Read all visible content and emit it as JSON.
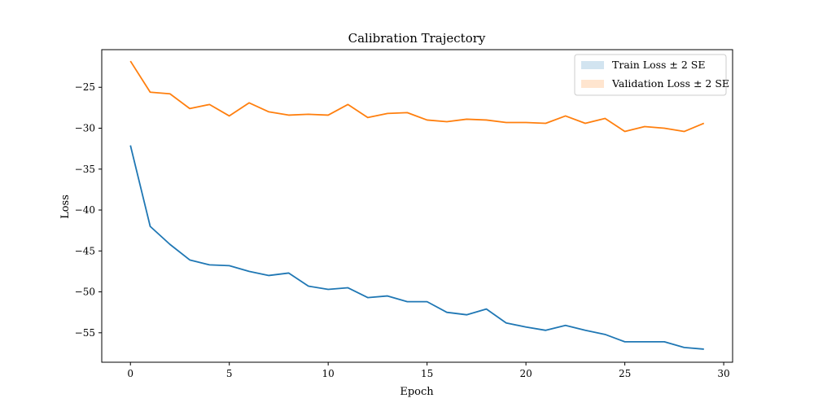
{
  "chart_data": {
    "type": "line",
    "title": "Calibration Trajectory",
    "xlabel": "Epoch",
    "ylabel": "Loss",
    "xlim": [
      -1.45,
      30.45
    ],
    "ylim": [
      -58.6,
      -20.4
    ],
    "xticks": [
      0,
      5,
      10,
      15,
      20,
      25,
      30
    ],
    "yticks": [
      -55,
      -50,
      -45,
      -40,
      -35,
      -30,
      -25
    ],
    "grid": false,
    "legend_position": "top-right",
    "x": [
      0,
      1,
      2,
      3,
      4,
      5,
      6,
      7,
      8,
      9,
      10,
      11,
      12,
      13,
      14,
      15,
      16,
      17,
      18,
      19,
      20,
      21,
      22,
      23,
      24,
      25,
      26,
      27,
      28,
      29
    ],
    "series": [
      {
        "name": "Train Loss ± 2 SE",
        "color": "#1f77b4",
        "values": [
          -32.1,
          -42.0,
          -44.2,
          -46.1,
          -46.7,
          -46.8,
          -47.5,
          -48.0,
          -47.7,
          -49.3,
          -49.7,
          -49.5,
          -50.7,
          -50.5,
          -51.2,
          -51.2,
          -52.5,
          -52.8,
          -52.1,
          -53.8,
          -54.3,
          -54.7,
          -54.1,
          -54.7,
          -55.2,
          -56.1,
          -56.1,
          -56.1,
          -56.8,
          -57.0
        ],
        "band_color": "#1f77b4"
      },
      {
        "name": "Validation Loss ± 2 SE",
        "color": "#ff7f0e",
        "values": [
          -21.8,
          -25.6,
          -25.8,
          -27.6,
          -27.1,
          -28.5,
          -26.9,
          -28.0,
          -28.4,
          -28.3,
          -28.4,
          -27.1,
          -28.7,
          -28.2,
          -28.1,
          -29.0,
          -29.2,
          -28.9,
          -29.0,
          -29.3,
          -29.3,
          -29.4,
          -28.5,
          -29.4,
          -28.8,
          -30.4,
          -29.8,
          -30.0,
          -30.4,
          -29.4
        ],
        "band_color": "#ff7f0e"
      }
    ]
  }
}
